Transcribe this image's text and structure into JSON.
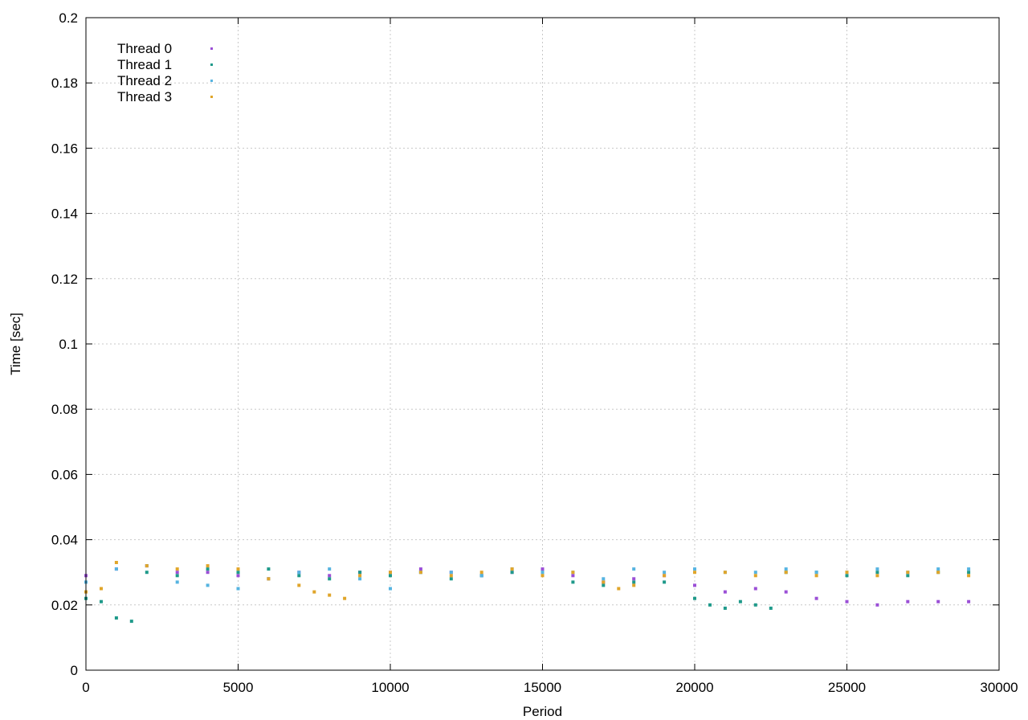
{
  "chart_data": {
    "type": "scatter",
    "title": "",
    "xlabel": "Period",
    "ylabel": "Time [sec]",
    "xlim": [
      0,
      30000
    ],
    "ylim": [
      0,
      0.2
    ],
    "xticks": [
      "0",
      "5000",
      "10000",
      "15000",
      "20000",
      "25000",
      "30000"
    ],
    "yticks": [
      "0",
      "0.02",
      "0.04",
      "0.06",
      "0.08",
      "0.1",
      "0.12",
      "0.14",
      "0.16",
      "0.18",
      "0.2"
    ],
    "grid": true,
    "legend_position": "top-left",
    "series": [
      {
        "name": "Thread 0",
        "color": "#9b4fd6",
        "x": [
          0,
          1000,
          2000,
          3000,
          4000,
          5000,
          6000,
          7000,
          8000,
          9000,
          10000,
          11000,
          12000,
          13000,
          14000,
          15000,
          16000,
          17000,
          18000,
          19000,
          20000,
          21000,
          22000,
          23000,
          24000,
          25000,
          26000,
          27000,
          28000,
          29000
        ],
        "y": [
          0.029,
          0.031,
          0.032,
          0.03,
          0.03,
          0.029,
          0.028,
          0.03,
          0.029,
          0.03,
          0.03,
          0.031,
          0.03,
          0.029,
          0.03,
          0.031,
          0.029,
          0.027,
          0.028,
          0.029,
          0.026,
          0.024,
          0.025,
          0.024,
          0.022,
          0.021,
          0.02,
          0.021,
          0.021,
          0.021
        ]
      },
      {
        "name": "Thread 1",
        "color": "#1f9a8a",
        "x": [
          0,
          500,
          1000,
          1500,
          2000,
          3000,
          4000,
          5000,
          6000,
          7000,
          8000,
          9000,
          10000,
          11000,
          12000,
          13000,
          14000,
          15000,
          16000,
          17000,
          18000,
          19000,
          20000,
          20500,
          21000,
          21500,
          22000,
          22500,
          23000,
          24000,
          25000,
          26000,
          27000,
          28000,
          29000
        ],
        "y": [
          0.022,
          0.021,
          0.016,
          0.015,
          0.03,
          0.029,
          0.031,
          0.03,
          0.031,
          0.029,
          0.028,
          0.03,
          0.029,
          0.03,
          0.028,
          0.029,
          0.03,
          0.03,
          0.027,
          0.026,
          0.027,
          0.027,
          0.022,
          0.02,
          0.019,
          0.021,
          0.02,
          0.019,
          0.03,
          0.03,
          0.029,
          0.03,
          0.029,
          0.03,
          0.03
        ]
      },
      {
        "name": "Thread 2",
        "color": "#56b4e0",
        "x": [
          0,
          1000,
          2000,
          3000,
          4000,
          5000,
          6000,
          7000,
          8000,
          9000,
          10000,
          11000,
          12000,
          13000,
          14000,
          15000,
          16000,
          17000,
          18000,
          19000,
          20000,
          21000,
          22000,
          23000,
          24000,
          25000,
          26000,
          27000,
          28000,
          29000
        ],
        "y": [
          0.027,
          0.031,
          0.032,
          0.027,
          0.026,
          0.025,
          0.028,
          0.03,
          0.031,
          0.028,
          0.025,
          0.03,
          0.03,
          0.029,
          0.031,
          0.03,
          0.03,
          0.028,
          0.031,
          0.03,
          0.031,
          0.03,
          0.03,
          0.031,
          0.03,
          0.03,
          0.031,
          0.03,
          0.031,
          0.031
        ]
      },
      {
        "name": "Thread 3",
        "color": "#e0a52a",
        "x": [
          0,
          500,
          1000,
          2000,
          3000,
          4000,
          5000,
          6000,
          7000,
          7500,
          8000,
          8500,
          9000,
          10000,
          11000,
          12000,
          13000,
          14000,
          15000,
          16000,
          17000,
          17500,
          18000,
          19000,
          20000,
          21000,
          22000,
          23000,
          24000,
          25000,
          26000,
          27000,
          28000,
          29000
        ],
        "y": [
          0.024,
          0.025,
          0.033,
          0.032,
          0.031,
          0.032,
          0.031,
          0.028,
          0.026,
          0.024,
          0.023,
          0.022,
          0.029,
          0.03,
          0.03,
          0.029,
          0.03,
          0.031,
          0.029,
          0.03,
          0.027,
          0.025,
          0.026,
          0.029,
          0.03,
          0.03,
          0.029,
          0.03,
          0.029,
          0.03,
          0.029,
          0.03,
          0.03,
          0.029
        ]
      }
    ]
  }
}
